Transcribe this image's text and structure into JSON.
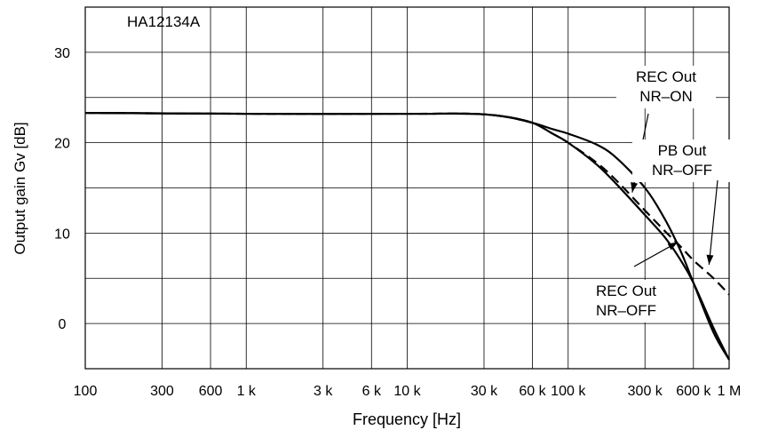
{
  "chart_data": {
    "type": "line",
    "title": "HA12134A",
    "xlabel": "Frequency [Hz]",
    "ylabel": "Output gain Gv [dB]",
    "x_scale": "log",
    "xlim": [
      100,
      1000000
    ],
    "ylim": [
      -5,
      35
    ],
    "grid": true,
    "x_tick_values": [
      100,
      300,
      600,
      1000,
      3000,
      6000,
      10000,
      30000,
      60000,
      100000,
      300000,
      600000,
      1000000
    ],
    "x_tick_labels": [
      "100",
      "300",
      "600",
      "1 k",
      "3 k",
      "6 k",
      "10 k",
      "30 k",
      "60 k",
      "100 k",
      "300 k",
      "600 k",
      "1 M"
    ],
    "y_tick_values": [
      0,
      10,
      20,
      30
    ],
    "y_tick_labels": [
      "0",
      "10",
      "20",
      "30"
    ],
    "series": [
      {
        "name": "REC Out NR–ON",
        "style": "solid",
        "x": [
          100,
          1000,
          10000,
          25000,
          40000,
          60000,
          80000,
          100000,
          150000,
          200000,
          300000,
          400000,
          500000,
          600000,
          800000,
          1000000
        ],
        "y": [
          23.3,
          23.2,
          23.2,
          23.2,
          22.9,
          22.2,
          21.5,
          21.0,
          19.8,
          18.3,
          15.0,
          11.5,
          8.0,
          4.5,
          -1.0,
          -4.0
        ]
      },
      {
        "name": "PB Out NR–OFF",
        "style": "dashed",
        "x": [
          100,
          1000,
          10000,
          25000,
          40000,
          60000,
          80000,
          100000,
          150000,
          200000,
          300000,
          400000,
          500000,
          600000,
          800000,
          1000000
        ],
        "y": [
          23.3,
          23.2,
          23.2,
          23.2,
          22.9,
          22.2,
          21.0,
          20.0,
          17.8,
          15.8,
          12.5,
          10.2,
          8.5,
          7.0,
          5.0,
          3.2
        ]
      },
      {
        "name": "REC Out NR–OFF",
        "style": "solid",
        "x": [
          100,
          1000,
          10000,
          25000,
          40000,
          60000,
          80000,
          100000,
          150000,
          200000,
          300000,
          400000,
          500000,
          600000,
          800000,
          1000000
        ],
        "y": [
          23.3,
          23.2,
          23.2,
          23.2,
          22.9,
          22.2,
          21.0,
          20.0,
          17.6,
          15.4,
          12.0,
          9.5,
          7.0,
          4.5,
          -0.5,
          -4.0
        ]
      }
    ],
    "annotations": [
      {
        "lines": [
          "REC Out",
          "NR–ON"
        ],
        "arrow_to": [
          250000,
          14.5
        ]
      },
      {
        "lines": [
          "PB Out",
          "NR–OFF"
        ],
        "arrow_to": [
          750000,
          6.5
        ]
      },
      {
        "lines": [
          "REC Out",
          "NR–OFF"
        ],
        "arrow_to": [
          480000,
          9.0
        ]
      }
    ]
  }
}
